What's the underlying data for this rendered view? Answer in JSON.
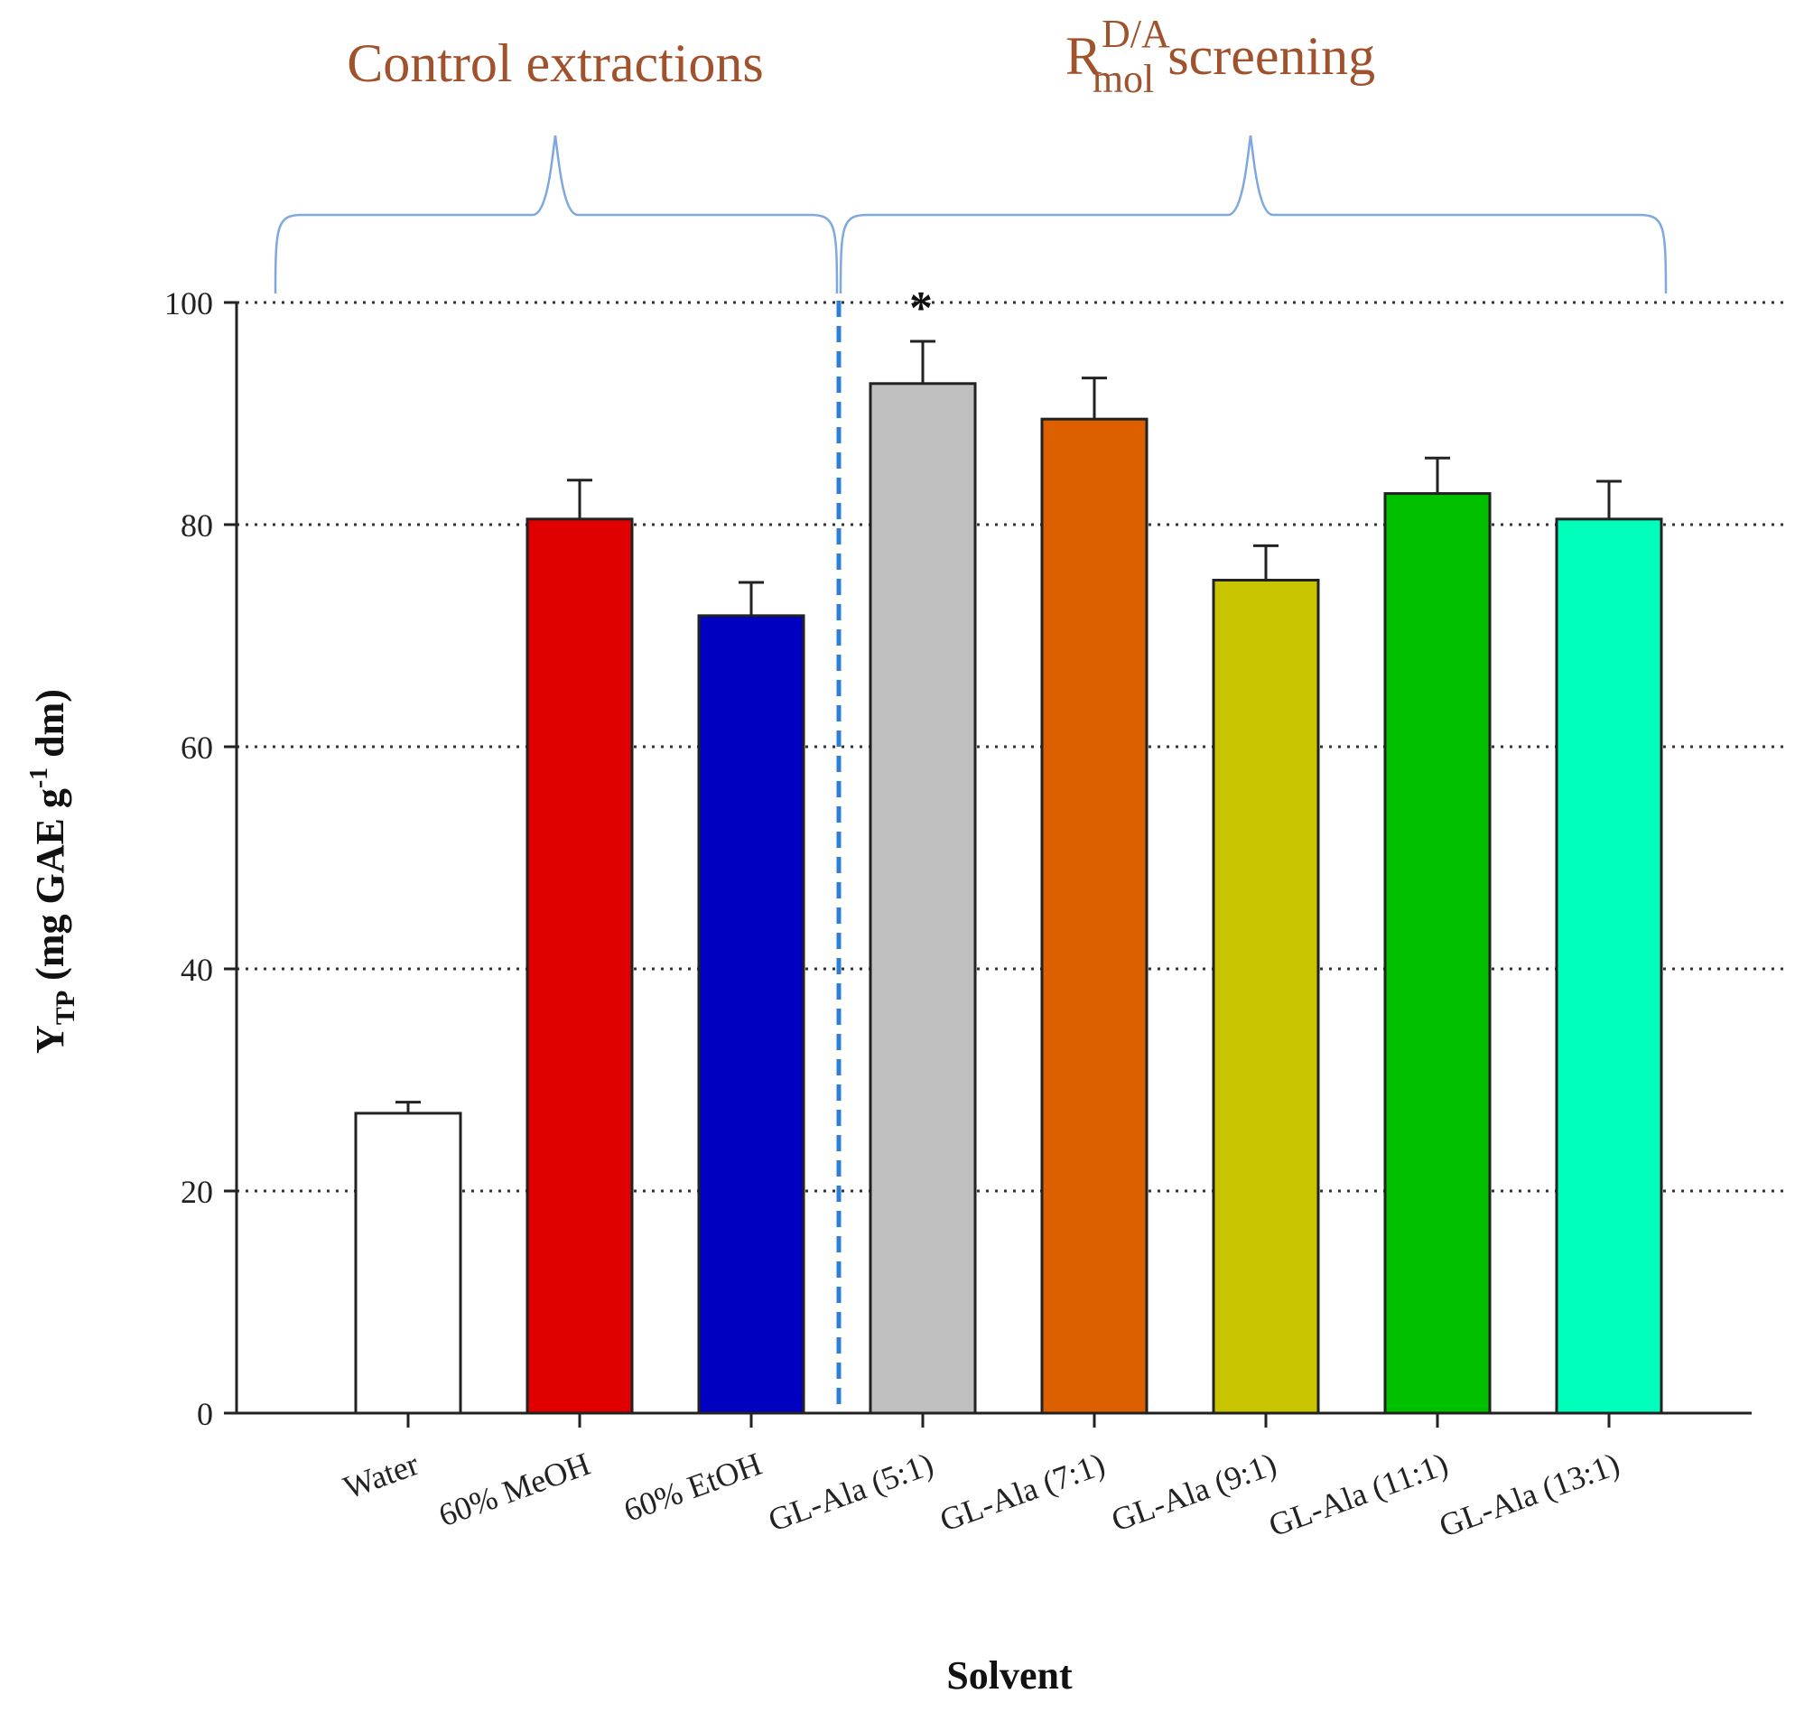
{
  "chart_data": {
    "type": "bar",
    "categories": [
      "Water",
      "60% MeOH",
      "60% EtOH",
      "GL-Ala (5:1)",
      "GL-Ala (7:1)",
      "GL-Ala (9:1)",
      "GL-Ala (11:1)",
      "GL-Ala (13:1)"
    ],
    "values": [
      27,
      80.5,
      71.8,
      92.7,
      89.5,
      75,
      82.8,
      80.5
    ],
    "errors": [
      1,
      3.5,
      3,
      3.8,
      3.7,
      3.1,
      3.2,
      3.4
    ],
    "colors": [
      "#ffffff",
      "#e00000",
      "#0000c0",
      "#c0c0c0",
      "#dd6000",
      "#c8c400",
      "#00c000",
      "#00ffbb"
    ],
    "ylim": [
      0,
      100
    ],
    "yticks": [
      0,
      20,
      40,
      60,
      80,
      100
    ],
    "grid_lines": [
      20,
      40,
      60,
      80,
      100
    ],
    "ylabel": {
      "main": "Y",
      "main_sub": "TP",
      "rest1": " (mg GAE g",
      "sup": "-1",
      "rest2": " dm)"
    },
    "xlabel": "Solvent",
    "annotations": [
      {
        "text": "*",
        "category": "GL-Ala (5:1)"
      }
    ],
    "groups": [
      {
        "label": "Control extractions",
        "categories": [
          "Water",
          "60% MeOH",
          "60% EtOH"
        ]
      },
      {
        "label_main": "R",
        "label_sup": "D/A",
        "label_sub": "mol",
        "label_rest": " screening",
        "categories": [
          "GL-Ala (5:1)",
          "GL-Ala (7:1)",
          "GL-Ala (9:1)",
          "GL-Ala (11:1)",
          "GL-Ala (13:1)"
        ]
      }
    ],
    "colors_meta": {
      "bracket": "#7fa8e0",
      "divider": "#2a7fd6",
      "group_text": "#a0522d",
      "bar_edge": "#222222"
    }
  }
}
